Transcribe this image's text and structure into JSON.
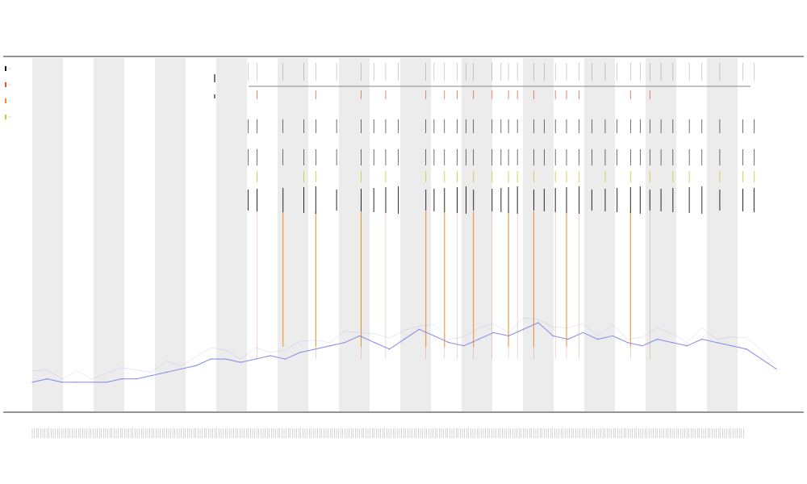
{
  "chart_data": {
    "type": "line",
    "title": "",
    "subtitle_lines": [],
    "xlabel": "",
    "ylabel": "",
    "grid": false,
    "background_bands": true,
    "legend_position": "top-left",
    "colors": {
      "depth_line": "#7b7fe8",
      "band": "#ececec",
      "frame": "#555555",
      "red_marks": "#e0503a",
      "orange_marks": "#f08a2a",
      "yellow_marks": "#c8c832",
      "black_marks": "#111111"
    },
    "series": [
      {
        "style": "line",
        "color": "#7b7fe8",
        "x": [
          0,
          2,
          4,
          6,
          8,
          10,
          12,
          14,
          16,
          18,
          20,
          22,
          24,
          26,
          28,
          30,
          32,
          34,
          36,
          38,
          40,
          42,
          44,
          46,
          48,
          50,
          52,
          54,
          56,
          58,
          60,
          62,
          64,
          66,
          68,
          70,
          72,
          74,
          76,
          78,
          80,
          82,
          84,
          86,
          88,
          90,
          92,
          94,
          96,
          98,
          100
        ],
        "values": [
          2,
          3,
          2,
          2,
          2,
          2,
          3,
          3,
          4,
          5,
          6,
          7,
          9,
          9,
          8,
          9,
          10,
          9,
          11,
          12,
          13,
          14,
          16,
          14,
          12,
          15,
          18,
          16,
          14,
          13,
          15,
          17,
          16,
          18,
          20,
          16,
          15,
          17,
          15,
          16,
          14,
          13,
          15,
          14,
          13,
          15,
          14,
          13,
          12,
          9,
          6
        ]
      },
      {
        "style": "spikes",
        "color": "#e0503a",
        "positions": [
          30.2,
          38.1,
          44.2,
          47.5,
          52.9,
          55.4,
          57.1,
          59.3,
          61.8,
          64.0,
          65.2,
          67.4,
          70.3,
          71.8,
          73.5,
          80.4,
          83.0
        ]
      },
      {
        "style": "spikes",
        "color": "#f08a2a",
        "positions": [
          33.7,
          38.1,
          44.2,
          52.9,
          55.4,
          59.3,
          64.0,
          67.4,
          71.8,
          80.4
        ]
      },
      {
        "style": "spikes",
        "color": "#c8c832",
        "positions": [
          30.2,
          36.5,
          38.1,
          44.2,
          47.5,
          52.9,
          55.4,
          57.1,
          59.3,
          61.8,
          64.0,
          65.2,
          67.4,
          70.3,
          71.8,
          73.5,
          77.0,
          80.4,
          83.0,
          86.1,
          88.3,
          92.4,
          95.5,
          97.0
        ]
      },
      {
        "style": "spikes",
        "color": "#111111",
        "positions": [
          29.0,
          30.2,
          33.7,
          36.5,
          38.1,
          40.9,
          44.2,
          45.9,
          47.5,
          49.2,
          52.9,
          54.0,
          55.4,
          57.1,
          58.3,
          59.3,
          61.8,
          63.0,
          64.0,
          65.2,
          67.4,
          68.8,
          70.3,
          71.8,
          73.5,
          75.2,
          77.0,
          78.6,
          80.4,
          81.7,
          83.0,
          84.5,
          86.1,
          88.3,
          90.0,
          92.4,
          95.5,
          97.0
        ]
      }
    ],
    "x_range": [
      0,
      100
    ],
    "y_range": [
      0,
      100
    ]
  }
}
